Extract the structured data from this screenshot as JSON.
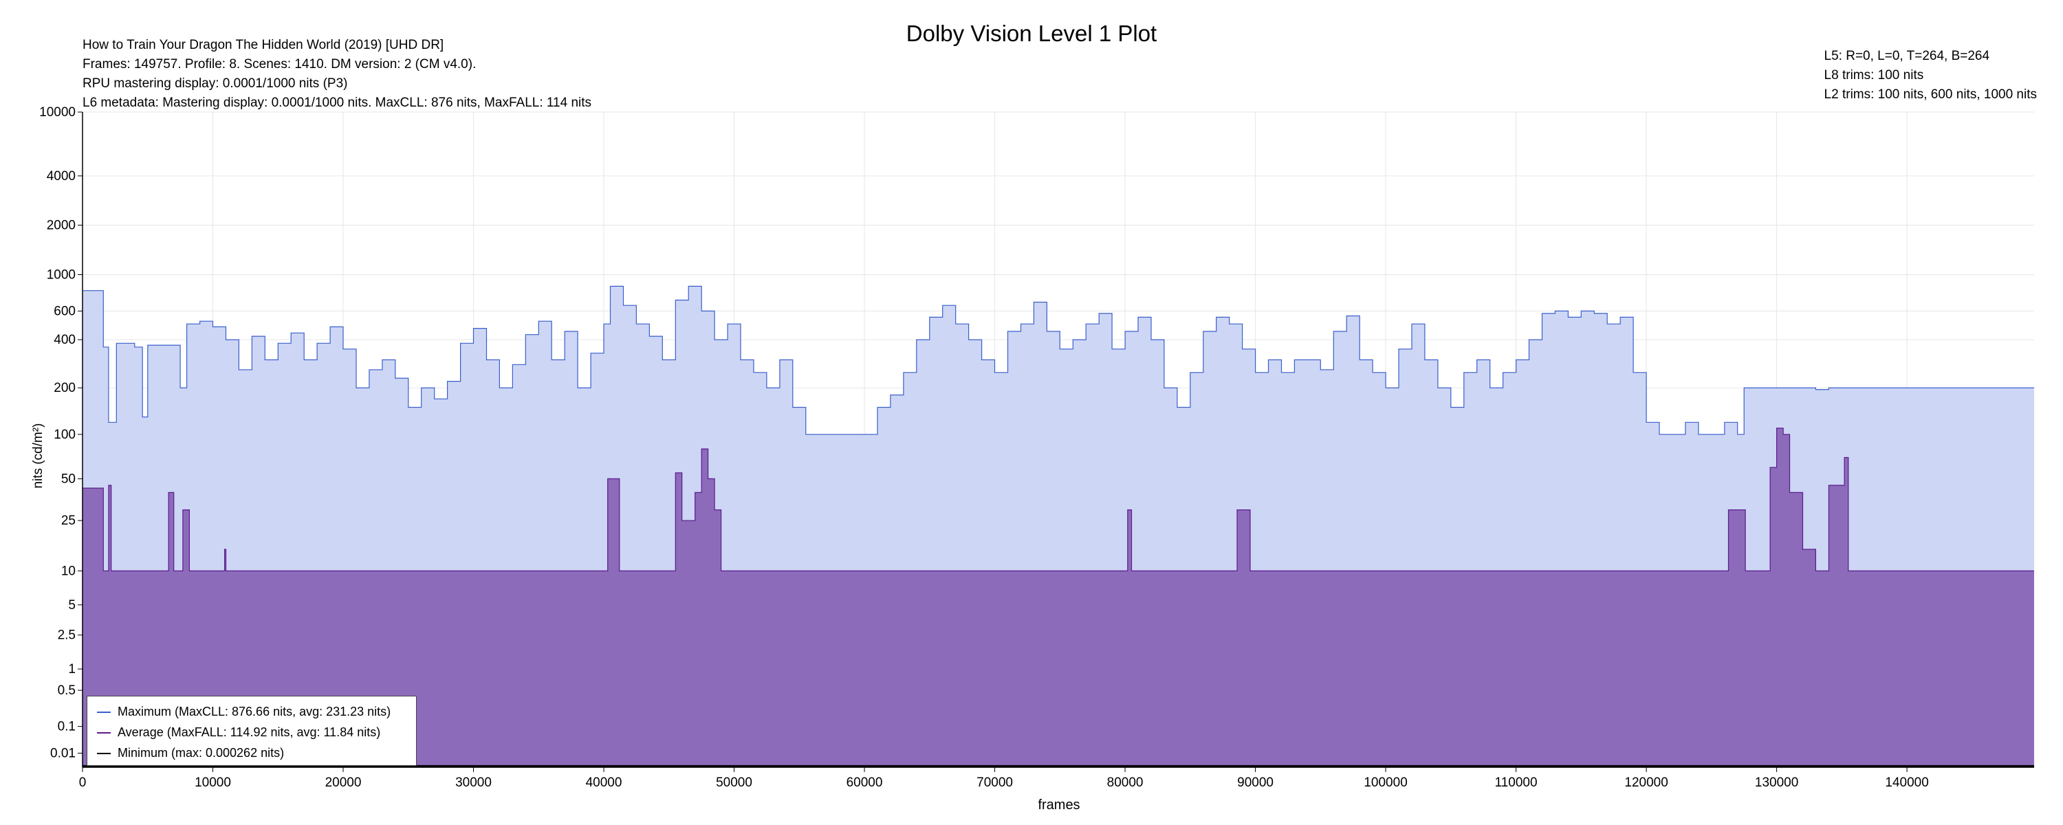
{
  "chart_data": {
    "type": "area",
    "title": "Dolby Vision Level 1 Plot",
    "info_left": [
      "How to Train Your Dragon The Hidden World (2019) [UHD DR]",
      "Frames: 149757. Profile: 8. Scenes: 1410. DM version: 2 (CM v4.0).",
      "RPU mastering display: 0.0001/1000 nits  (P3)",
      "L6 metadata: Mastering display: 0.0001/1000 nits. MaxCLL: 876 nits, MaxFALL: 114 nits"
    ],
    "info_right": [
      "L5: R=0, L=0, T=264, B=264",
      "L8 trims: 100 nits",
      "L2 trims: 100 nits, 600 nits, 1000 nits"
    ],
    "xlabel": "frames",
    "ylabel": "nits (cd/m²)",
    "xlim": [
      0,
      149757
    ],
    "x_ticks": [
      0,
      10000,
      20000,
      30000,
      40000,
      50000,
      60000,
      70000,
      80000,
      90000,
      100000,
      110000,
      120000,
      130000,
      140000
    ],
    "y_ticks": [
      {
        "v": 0.01,
        "label": "0.01"
      },
      {
        "v": 0.1,
        "label": "0.1"
      },
      {
        "v": 0.5,
        "label": "0.5"
      },
      {
        "v": 1,
        "label": "1"
      },
      {
        "v": 2.5,
        "label": "2.5"
      },
      {
        "v": 5,
        "label": "5"
      },
      {
        "v": 10,
        "label": "10"
      },
      {
        "v": 25,
        "label": "25"
      },
      {
        "v": 50,
        "label": "50"
      },
      {
        "v": 100,
        "label": "100"
      },
      {
        "v": 200,
        "label": "200"
      },
      {
        "v": 400,
        "label": "400"
      },
      {
        "v": 600,
        "label": "600"
      },
      {
        "v": 1000,
        "label": "1000"
      },
      {
        "v": 2000,
        "label": "2000"
      },
      {
        "v": 4000,
        "label": "4000"
      },
      {
        "v": 10000,
        "label": "10000"
      }
    ],
    "y_scale": "PQ (perceptual)",
    "grid": true,
    "legend_position": "bottom-left",
    "series": [
      {
        "name": "Maximum (MaxCLL: 876.66 nits, avg: 231.23 nits)",
        "color": "#3a5fcd",
        "fill": "#cdd6f4",
        "points": [
          [
            0,
            800
          ],
          [
            1600,
            800
          ],
          [
            1600,
            360
          ],
          [
            2000,
            120
          ],
          [
            2600,
            380
          ],
          [
            4000,
            360
          ],
          [
            4600,
            130
          ],
          [
            5000,
            370
          ],
          [
            7500,
            370
          ],
          [
            7500,
            200
          ],
          [
            8000,
            500
          ],
          [
            9000,
            520
          ],
          [
            10000,
            480
          ],
          [
            11000,
            400
          ],
          [
            12000,
            260
          ],
          [
            13000,
            420
          ],
          [
            14000,
            300
          ],
          [
            15000,
            380
          ],
          [
            16000,
            440
          ],
          [
            17000,
            300
          ],
          [
            18000,
            380
          ],
          [
            19000,
            480
          ],
          [
            20000,
            350
          ],
          [
            21000,
            200
          ],
          [
            22000,
            260
          ],
          [
            23000,
            300
          ],
          [
            24000,
            230
          ],
          [
            25000,
            150
          ],
          [
            26000,
            200
          ],
          [
            27000,
            170
          ],
          [
            28000,
            220
          ],
          [
            29000,
            380
          ],
          [
            30000,
            470
          ],
          [
            31000,
            300
          ],
          [
            32000,
            200
          ],
          [
            33000,
            280
          ],
          [
            34000,
            430
          ],
          [
            35000,
            520
          ],
          [
            36000,
            300
          ],
          [
            37000,
            450
          ],
          [
            38000,
            200
          ],
          [
            39000,
            330
          ],
          [
            40000,
            500
          ],
          [
            40500,
            850
          ],
          [
            41500,
            650
          ],
          [
            42500,
            500
          ],
          [
            43500,
            420
          ],
          [
            44500,
            300
          ],
          [
            45500,
            700
          ],
          [
            46500,
            850
          ],
          [
            47500,
            600
          ],
          [
            48500,
            400
          ],
          [
            49500,
            500
          ],
          [
            50500,
            300
          ],
          [
            51500,
            250
          ],
          [
            52500,
            200
          ],
          [
            53500,
            300
          ],
          [
            54500,
            150
          ],
          [
            55500,
            100
          ],
          [
            57000,
            100
          ],
          [
            58000,
            100
          ],
          [
            59000,
            100
          ],
          [
            60000,
            100
          ],
          [
            61000,
            150
          ],
          [
            62000,
            180
          ],
          [
            63000,
            250
          ],
          [
            64000,
            400
          ],
          [
            65000,
            550
          ],
          [
            66000,
            650
          ],
          [
            67000,
            500
          ],
          [
            68000,
            400
          ],
          [
            69000,
            300
          ],
          [
            70000,
            250
          ],
          [
            71000,
            450
          ],
          [
            72000,
            500
          ],
          [
            73000,
            680
          ],
          [
            74000,
            450
          ],
          [
            75000,
            350
          ],
          [
            76000,
            400
          ],
          [
            77000,
            500
          ],
          [
            78000,
            580
          ],
          [
            79000,
            350
          ],
          [
            80000,
            450
          ],
          [
            81000,
            550
          ],
          [
            82000,
            400
          ],
          [
            83000,
            200
          ],
          [
            84000,
            150
          ],
          [
            85000,
            250
          ],
          [
            86000,
            450
          ],
          [
            87000,
            550
          ],
          [
            88000,
            500
          ],
          [
            89000,
            350
          ],
          [
            90000,
            250
          ],
          [
            91000,
            300
          ],
          [
            92000,
            250
          ],
          [
            93000,
            300
          ],
          [
            94000,
            300
          ],
          [
            95000,
            260
          ],
          [
            96000,
            450
          ],
          [
            97000,
            560
          ],
          [
            98000,
            300
          ],
          [
            99000,
            250
          ],
          [
            100000,
            200
          ],
          [
            101000,
            350
          ],
          [
            102000,
            500
          ],
          [
            103000,
            300
          ],
          [
            104000,
            200
          ],
          [
            105000,
            150
          ],
          [
            106000,
            250
          ],
          [
            107000,
            300
          ],
          [
            108000,
            200
          ],
          [
            109000,
            250
          ],
          [
            110000,
            300
          ],
          [
            111000,
            400
          ],
          [
            112000,
            580
          ],
          [
            113000,
            600
          ],
          [
            114000,
            550
          ],
          [
            115000,
            600
          ],
          [
            116000,
            580
          ],
          [
            117000,
            500
          ],
          [
            118000,
            550
          ],
          [
            119000,
            250
          ],
          [
            120000,
            120
          ],
          [
            121000,
            100
          ],
          [
            122000,
            100
          ],
          [
            123000,
            120
          ],
          [
            124000,
            100
          ],
          [
            125000,
            100
          ],
          [
            126000,
            120
          ],
          [
            127000,
            100
          ],
          [
            127500,
            200
          ],
          [
            130000,
            200
          ],
          [
            132000,
            200
          ],
          [
            133000,
            195
          ],
          [
            134000,
            200
          ],
          [
            135000,
            200
          ],
          [
            140000,
            200
          ],
          [
            149757,
            200
          ]
        ]
      },
      {
        "name": "Average (MaxFALL: 114.92 nits, avg: 11.84 nits)",
        "color": "#5b1a8c",
        "fill": "#8c6bbb",
        "points": [
          [
            0,
            43
          ],
          [
            1600,
            43
          ],
          [
            1600,
            10
          ],
          [
            2000,
            45
          ],
          [
            2200,
            10
          ],
          [
            6500,
            10
          ],
          [
            6600,
            40
          ],
          [
            7000,
            10
          ],
          [
            7600,
            10
          ],
          [
            7700,
            30
          ],
          [
            8200,
            10
          ],
          [
            10800,
            10
          ],
          [
            10900,
            15
          ],
          [
            11000,
            10
          ],
          [
            40000,
            10
          ],
          [
            40300,
            50
          ],
          [
            41000,
            50
          ],
          [
            41200,
            10
          ],
          [
            45000,
            10
          ],
          [
            45500,
            55
          ],
          [
            46000,
            25
          ],
          [
            47000,
            40
          ],
          [
            47500,
            80
          ],
          [
            48000,
            50
          ],
          [
            48500,
            30
          ],
          [
            49000,
            10
          ],
          [
            55000,
            10
          ],
          [
            80000,
            10
          ],
          [
            80200,
            30
          ],
          [
            80500,
            10
          ],
          [
            88500,
            10
          ],
          [
            88600,
            30
          ],
          [
            89500,
            30
          ],
          [
            89600,
            10
          ],
          [
            126000,
            10
          ],
          [
            126300,
            30
          ],
          [
            127500,
            30
          ],
          [
            127600,
            10
          ],
          [
            129000,
            10
          ],
          [
            129500,
            60
          ],
          [
            130000,
            110
          ],
          [
            130500,
            100
          ],
          [
            131000,
            40
          ],
          [
            132000,
            15
          ],
          [
            133000,
            10
          ],
          [
            134000,
            45
          ],
          [
            135000,
            45
          ],
          [
            135200,
            70
          ],
          [
            135500,
            10
          ],
          [
            149757,
            10
          ]
        ]
      },
      {
        "name": "Minimum (max: 0.000262 nits)",
        "color": "#000000",
        "fill": "none",
        "points": [
          [
            0,
            0.0001
          ],
          [
            149757,
            0.0001
          ]
        ]
      }
    ]
  }
}
